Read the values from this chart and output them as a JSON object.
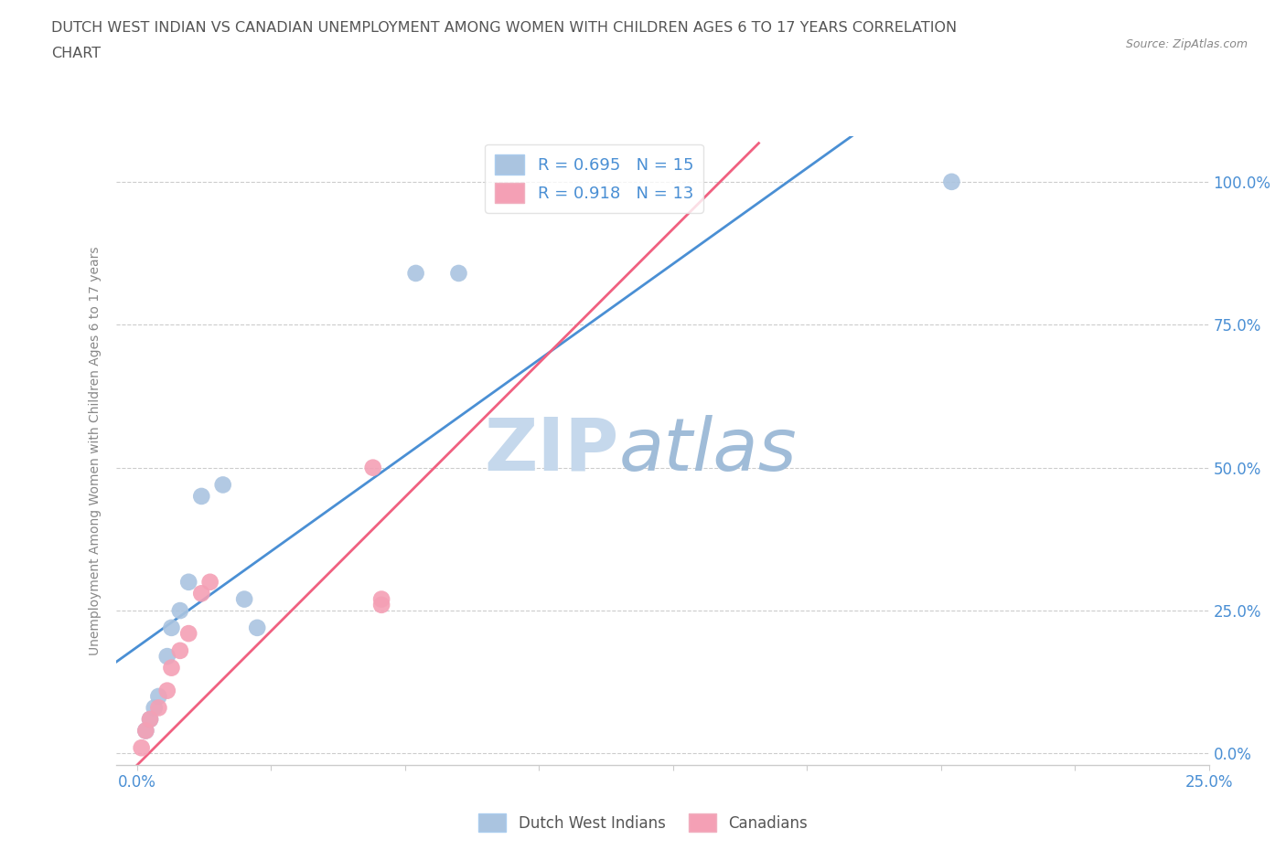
{
  "title_line1": "DUTCH WEST INDIAN VS CANADIAN UNEMPLOYMENT AMONG WOMEN WITH CHILDREN AGES 6 TO 17 YEARS CORRELATION",
  "title_line2": "CHART",
  "source": "Source: ZipAtlas.com",
  "ylabel": "Unemployment Among Women with Children Ages 6 to 17 years",
  "xlim": [
    -0.005,
    0.25
  ],
  "ylim": [
    -0.02,
    1.08
  ],
  "ytick_vals": [
    0.0,
    0.25,
    0.5,
    0.75,
    1.0
  ],
  "ytick_labels": [
    "0.0%",
    "25.0%",
    "50.0%",
    "75.0%",
    "100.0%"
  ],
  "xtick_vals": [
    0.0,
    0.03125,
    0.0625,
    0.09375,
    0.125,
    0.15625,
    0.1875,
    0.21875,
    0.25
  ],
  "xtick_labels": [
    "0.0%",
    "",
    "",
    "",
    "",
    "",
    "",
    "",
    "25.0%"
  ],
  "blue_scatter_x": [
    0.002,
    0.003,
    0.004,
    0.005,
    0.007,
    0.008,
    0.01,
    0.012,
    0.015,
    0.02,
    0.025,
    0.028,
    0.065,
    0.075,
    0.19
  ],
  "blue_scatter_y": [
    0.04,
    0.06,
    0.08,
    0.1,
    0.17,
    0.22,
    0.25,
    0.3,
    0.45,
    0.47,
    0.27,
    0.22,
    0.84,
    0.84,
    1.0
  ],
  "pink_scatter_x": [
    0.001,
    0.002,
    0.003,
    0.005,
    0.007,
    0.008,
    0.01,
    0.012,
    0.015,
    0.017,
    0.055,
    0.057,
    0.057
  ],
  "pink_scatter_y": [
    0.01,
    0.04,
    0.06,
    0.08,
    0.11,
    0.15,
    0.18,
    0.21,
    0.28,
    0.3,
    0.5,
    0.26,
    0.27
  ],
  "blue_line_x": [
    0.0,
    0.25
  ],
  "blue_line_y_intercept": 0.18,
  "blue_line_slope": 3.6,
  "pink_line_x": [
    0.0,
    0.14
  ],
  "pink_line_y_intercept": -0.02,
  "pink_line_slope": 7.5,
  "blue_R": 0.695,
  "blue_N": 15,
  "pink_R": 0.918,
  "pink_N": 13,
  "blue_color": "#aac4e0",
  "pink_color": "#f4a0b5",
  "blue_line_color": "#4a8fd4",
  "pink_line_color": "#f06080",
  "legend_label_blue": "Dutch West Indians",
  "legend_label_pink": "Canadians",
  "watermark_zip": "ZIP",
  "watermark_atlas": "atlas",
  "watermark_color_zip": "#c5d8ec",
  "watermark_color_atlas": "#a0bcd8",
  "grid_color": "#cccccc",
  "title_color": "#555555",
  "tick_color": "#4a8fd4",
  "axis_label_color": "#888888",
  "source_color": "#888888",
  "bottom_legend_color": "#555555"
}
